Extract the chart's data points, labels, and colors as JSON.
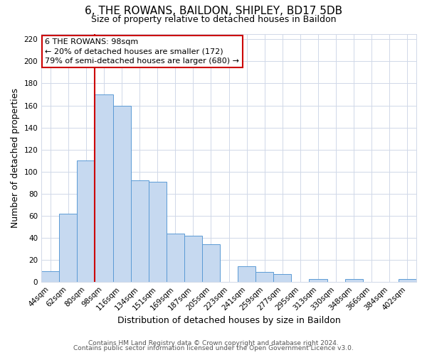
{
  "title": "6, THE ROWANS, BAILDON, SHIPLEY, BD17 5DB",
  "subtitle": "Size of property relative to detached houses in Baildon",
  "xlabel": "Distribution of detached houses by size in Baildon",
  "ylabel": "Number of detached properties",
  "bar_labels": [
    "44sqm",
    "62sqm",
    "80sqm",
    "98sqm",
    "116sqm",
    "134sqm",
    "151sqm",
    "169sqm",
    "187sqm",
    "205sqm",
    "223sqm",
    "241sqm",
    "259sqm",
    "277sqm",
    "295sqm",
    "313sqm",
    "330sqm",
    "348sqm",
    "366sqm",
    "384sqm",
    "402sqm"
  ],
  "bar_values": [
    10,
    62,
    110,
    170,
    160,
    92,
    91,
    44,
    42,
    34,
    0,
    14,
    9,
    7,
    0,
    3,
    0,
    3,
    0,
    0,
    3
  ],
  "bar_color": "#c6d9f0",
  "bar_edge_color": "#5b9bd5",
  "vline_x": 2.5,
  "vline_color": "#cc0000",
  "ylim": [
    0,
    225
  ],
  "yticks": [
    0,
    20,
    40,
    60,
    80,
    100,
    120,
    140,
    160,
    180,
    200,
    220
  ],
  "annotation_line1": "6 THE ROWANS: 98sqm",
  "annotation_line2": "← 20% of detached houses are smaller (172)",
  "annotation_line3": "79% of semi-detached houses are larger (680) →",
  "annotation_box_color": "#ffffff",
  "annotation_box_edge": "#cc0000",
  "footer1": "Contains HM Land Registry data © Crown copyright and database right 2024.",
  "footer2": "Contains public sector information licensed under the Open Government Licence v3.0.",
  "bg_color": "#ffffff",
  "grid_color": "#d0d8e8",
  "title_fontsize": 11,
  "subtitle_fontsize": 9,
  "axis_label_fontsize": 9,
  "tick_fontsize": 7.5,
  "annotation_fontsize": 8,
  "footer_fontsize": 6.5
}
